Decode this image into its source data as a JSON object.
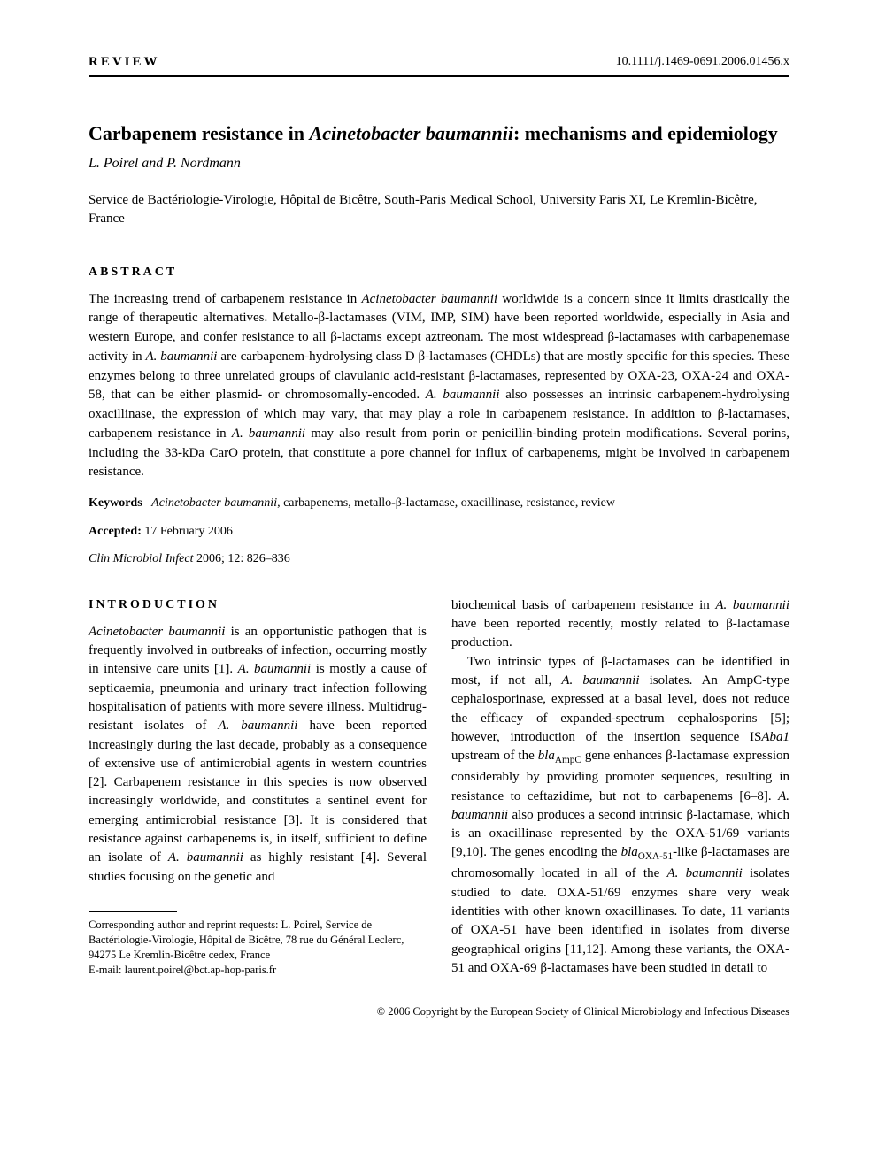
{
  "header": {
    "section_label": "REVIEW",
    "doi": "10.1111/j.1469-0691.2006.01456.x"
  },
  "article": {
    "title_pre": "Carbapenem resistance in ",
    "title_italic": "Acinetobacter baumannii",
    "title_post": ": mechanisms and epidemiology",
    "authors": "L. Poirel and P. Nordmann",
    "affiliation": "Service de Bactériologie-Virologie, Hôpital de Bicêtre, South-Paris Medical School, University Paris XI, Le Kremlin-Bicêtre, France"
  },
  "abstract": {
    "heading": "ABSTRACT",
    "p1a": "The increasing trend of carbapenem resistance in ",
    "p1b": "Acinetobacter baumannii",
    "p1c": " worldwide is a concern since it limits drastically the range of therapeutic alternatives. Metallo-β-lactamases (VIM, IMP, SIM) have been reported worldwide, especially in Asia and western Europe, and confer resistance to all β-lactams except aztreonam. The most widespread β-lactamases with carbapenemase activity in ",
    "p1d": "A. baumannii",
    "p1e": " are carbapenem-hydrolysing class D β-lactamases (CHDLs) that are mostly specific for this species. These enzymes belong to three unrelated groups of clavulanic acid-resistant β-lactamases, represented by OXA-23, OXA-24 and OXA-58, that can be either plasmid- or chromosomally-encoded. ",
    "p1f": "A. baumannii",
    "p1g": " also possesses an intrinsic carbapenem-hydrolysing oxacillinase, the expression of which may vary, that may play a role in carbapenem resistance. In addition to β-lactamases, carbapenem resistance in ",
    "p1h": "A. baumannii",
    "p1i": " may also result from porin or penicillin-binding protein modifications. Several porins, including the 33-kDa CarO protein, that constitute a pore channel for influx of carbapenems, might be involved in carbapenem resistance."
  },
  "keywords": {
    "label": "Keywords",
    "italic_first": "Acinetobacter baumannii",
    "rest": ", carbapenems, metallo-β-lactamase, oxacillinase, resistance, review"
  },
  "accepted": {
    "label": "Accepted:",
    "value": " 17 February 2006"
  },
  "citation": {
    "journal": "Clin Microbiol Infect",
    "rest": " 2006; 12: 826–836"
  },
  "intro_heading": "INTRODUCTION",
  "col_left": {
    "p1a": "Acinetobacter baumannii",
    "p1b": " is an opportunistic pathogen that is frequently involved in outbreaks of infection, occurring mostly in intensive care units [1]. ",
    "p1c": "A. baumannii",
    "p1d": " is mostly a cause of septicaemia, pneumonia and urinary tract infection following hospitalisation of patients with more severe illness. Multidrug-resistant isolates of ",
    "p1e": "A. baumannii",
    "p1f": " have been reported increasingly during the last decade, probably as a consequence of extensive use of antimicrobial agents in western countries [2]. Carbapenem resistance in this species is now observed increasingly worldwide, and constitutes a sentinel event for emerging antimicrobial resistance [3]. It is considered that resistance against carbapenems is, in itself, sufficient to define an isolate of ",
    "p1g": "A. baumannii",
    "p1h": " as highly resistant [4]. Several studies focusing on the genetic and"
  },
  "col_right": {
    "p1a": "biochemical basis of carbapenem resistance in ",
    "p1b": "A. baumannii",
    "p1c": " have been reported recently, mostly related to β-lactamase production.",
    "p2a": "Two intrinsic types of β-lactamases can be identified in most, if not all, ",
    "p2b": "A. baumannii",
    "p2c": " isolates. An AmpC-type cephalosporinase, expressed at a basal level, does not reduce the efficacy of expanded-spectrum cephalosporins [5]; however, introduction of the insertion sequence IS",
    "p2d": "Aba1",
    "p2e": " upstream of the ",
    "p2f": "bla",
    "p2g": " gene enhances β-lactamase expression considerably by providing promoter sequences, resulting in resistance to ceftazidime, but not to carbapenems [6–8]. ",
    "p2h": "A. baumannii",
    "p2i": " also produces a second intrinsic β-lactamase, which is an oxacillinase represented by the OXA-51/69 variants [9,10]. The genes encoding the ",
    "p2j": "bla",
    "p2k": "-like β-lactamases are chromosomally located in all of the ",
    "p2l": "A. baumannii",
    "p2m": " isolates studied to date. OXA-51/69 enzymes share very weak identities with other known oxacillinases. To date, 11 variants of OXA-51 have been identified in isolates from diverse geographical origins [11,12]. Among these variants, the OXA-51 and OXA-69 β-lactamases have been studied in detail to",
    "sub_ampc": "AmpC",
    "sub_oxa": "OXA-51"
  },
  "footnote": {
    "line1": "Corresponding author and reprint requests: L. Poirel, Service de Bactériologie-Virologie, Hôpital de Bicêtre, 78 rue du Général Leclerc, 94275 Le Kremlin-Bicêtre cedex, France",
    "line2": "E-mail: laurent.poirel@bct.ap-hop-paris.fr"
  },
  "copyright": "© 2006 Copyright by the European Society of Clinical Microbiology and Infectious Diseases"
}
